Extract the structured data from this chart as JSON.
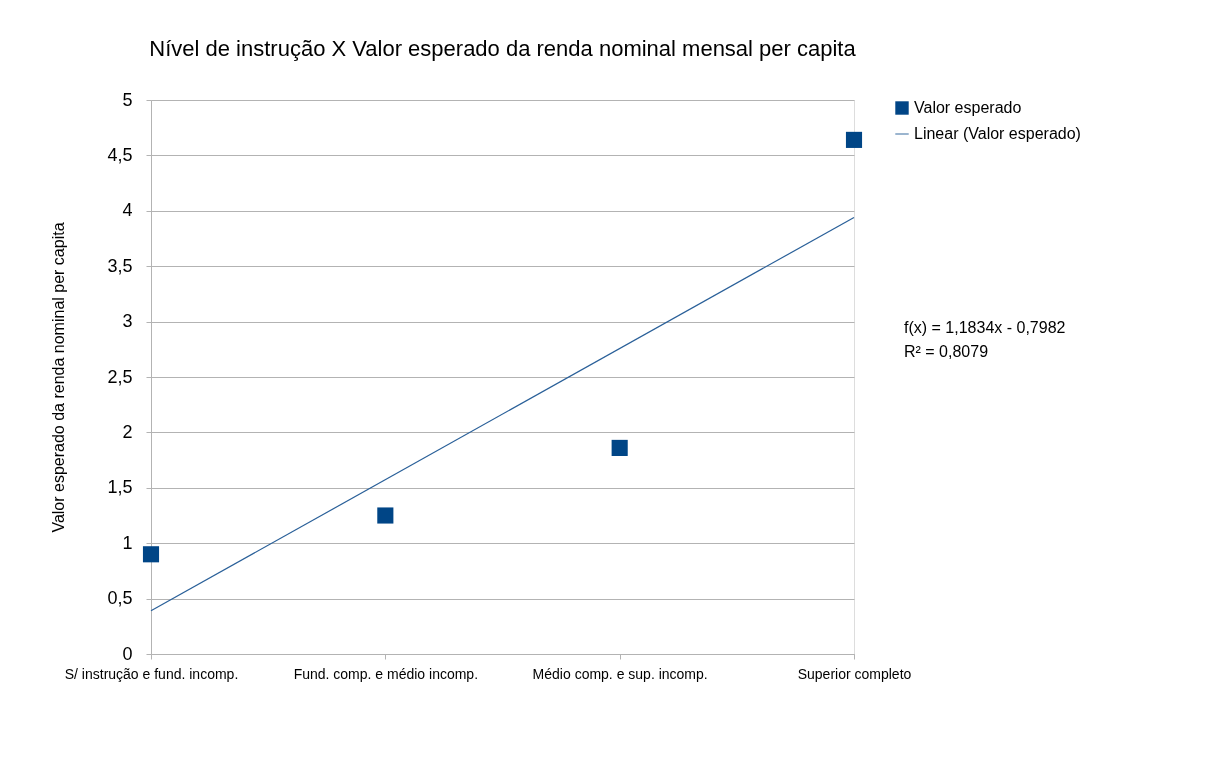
{
  "chart_data": {
    "type": "scatter",
    "title": "Nível de instrução X Valor esperado da renda nominal mensal per capita",
    "ylabel": "Valor esperado da renda nominal per capita",
    "categories": [
      "S/ instrução e fund. incomp.",
      "Fund. comp. e médio incomp.",
      "Médio comp. e sup. incomp.",
      "Superior completo"
    ],
    "series": [
      {
        "name": "Valor esperado",
        "color": "#004586",
        "values": [
          0.9,
          1.25,
          1.86,
          4.64
        ],
        "marker": "square"
      },
      {
        "name": "Linear (Valor esperado)",
        "type": "line",
        "color": "#2a6099",
        "x": [
          "S/ instrução e fund. incomp.",
          "Superior completo"
        ],
        "values": [
          0.39,
          3.94
        ],
        "line_style": "solid"
      }
    ],
    "ylim": [
      0,
      5
    ],
    "yticks": [
      0,
      {
        "value": 0.5,
        "label": "0,5"
      },
      1,
      {
        "value": 1.5,
        "label": "1,5"
      },
      2,
      {
        "value": 2.5,
        "label": "2,5"
      },
      3,
      {
        "value": 3.5,
        "label": "3,5"
      },
      4,
      {
        "value": 4.5,
        "label": "4,5"
      },
      5
    ],
    "grid": "y",
    "legend": "right",
    "annotations": [
      "f(x) = 1,1834x - 0,7982",
      "R² = 0,8079"
    ]
  }
}
